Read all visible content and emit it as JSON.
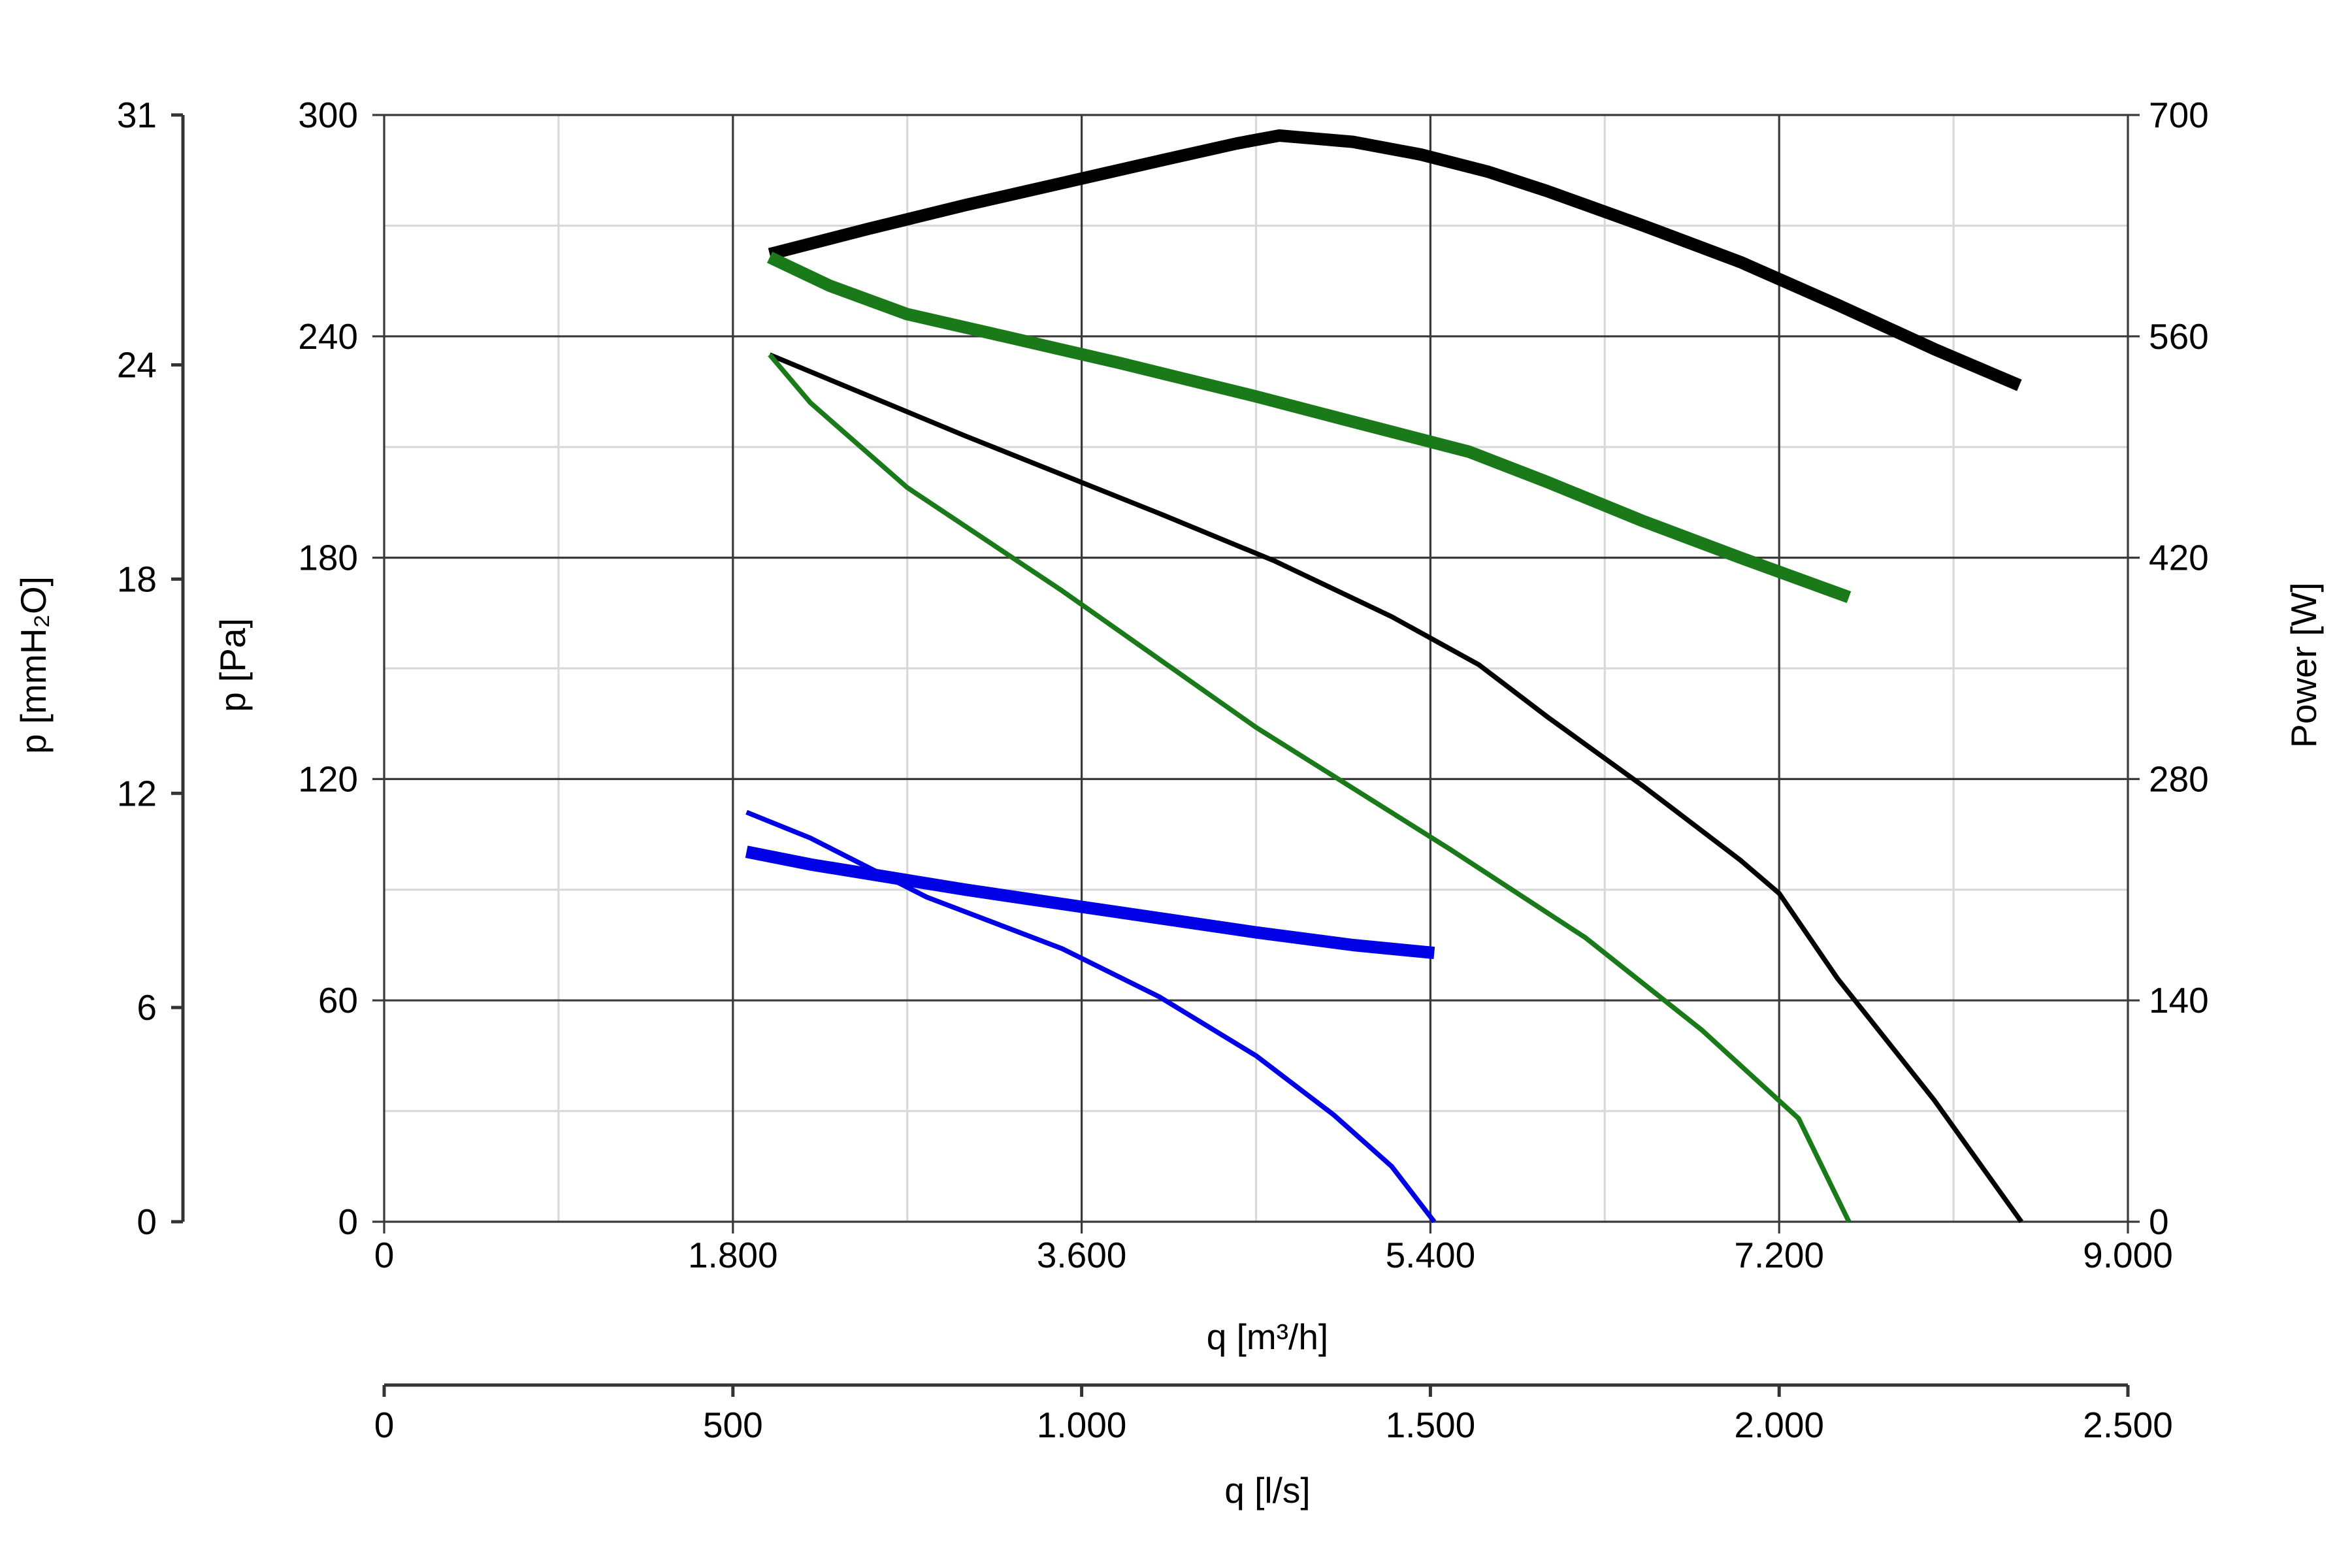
{
  "chart_data": {
    "type": "line",
    "x_primary": {
      "label": "q [m³/h]",
      "range": [
        0,
        9000
      ],
      "ticks": [
        0,
        1800,
        3600,
        5400,
        7200,
        9000
      ],
      "tick_labels": [
        "0",
        "1.800",
        "3.600",
        "5.400",
        "7.200",
        "9.000"
      ],
      "minor_ticks": [
        900,
        2700,
        4500,
        6300,
        8100
      ]
    },
    "x_secondary": {
      "label": "q [l/s]",
      "range": [
        0,
        2500
      ],
      "ticks": [
        0,
        500,
        1000,
        1500,
        2000,
        2500
      ],
      "tick_labels": [
        "0",
        "500",
        "1.000",
        "1.500",
        "2.000",
        "2.500"
      ]
    },
    "y_primary": {
      "label": "p [Pa]",
      "range": [
        0,
        300
      ],
      "ticks": [
        0,
        60,
        120,
        180,
        240,
        300
      ],
      "tick_labels": [
        "0",
        "60",
        "120",
        "180",
        "240",
        "300"
      ],
      "minor_ticks": [
        30,
        90,
        150,
        210,
        270
      ]
    },
    "y_secondary_left": {
      "label": "p [mmH₂O]",
      "range": [
        0,
        31
      ],
      "ticks": [
        0,
        6,
        12,
        18,
        24,
        31
      ],
      "tick_labels": [
        "0",
        "6",
        "12",
        "18",
        "24",
        "31"
      ]
    },
    "y_secondary_right": {
      "label": "Power [W]",
      "range": [
        0,
        700
      ],
      "ticks": [
        0,
        140,
        280,
        420,
        560,
        700
      ],
      "tick_labels": [
        "0",
        "140",
        "280",
        "420",
        "560",
        "700"
      ]
    },
    "grid": true,
    "series": [
      {
        "axis": "pressure",
        "color": "#000000",
        "weight": "thin",
        "points": [
          [
            1990,
            235
          ],
          [
            3000,
            213
          ],
          [
            4000,
            192
          ],
          [
            4600,
            179
          ],
          [
            5200,
            164
          ],
          [
            5650,
            151
          ],
          [
            6000,
            137
          ],
          [
            6500,
            118
          ],
          [
            7000,
            98
          ],
          [
            7200,
            89
          ],
          [
            7500,
            66
          ],
          [
            8000,
            33
          ],
          [
            8450,
            0
          ]
        ]
      },
      {
        "axis": "pressure",
        "color": "#1a7a1a",
        "weight": "thin",
        "points": [
          [
            1990,
            235
          ],
          [
            2200,
            222
          ],
          [
            2700,
            199
          ],
          [
            3500,
            171
          ],
          [
            4500,
            134
          ],
          [
            5500,
            101
          ],
          [
            6200,
            77
          ],
          [
            6800,
            52
          ],
          [
            7300,
            28
          ],
          [
            7560,
            0
          ]
        ]
      },
      {
        "axis": "pressure",
        "color": "#0000e6",
        "weight": "thin",
        "points": [
          [
            1870,
            111
          ],
          [
            2200,
            104
          ],
          [
            2800,
            88
          ],
          [
            3500,
            74
          ],
          [
            4000,
            61
          ],
          [
            4500,
            45
          ],
          [
            4900,
            29
          ],
          [
            5200,
            15
          ],
          [
            5420,
            0
          ]
        ]
      },
      {
        "axis": "power",
        "color": "#000000",
        "weight": "thick",
        "points": [
          [
            1990,
            612
          ],
          [
            2500,
            628
          ],
          [
            3000,
            643
          ],
          [
            3500,
            657
          ],
          [
            4000,
            671
          ],
          [
            4400,
            682
          ],
          [
            4620,
            687
          ],
          [
            5000,
            683
          ],
          [
            5350,
            675
          ],
          [
            5700,
            664
          ],
          [
            6000,
            652
          ],
          [
            6500,
            630
          ],
          [
            7000,
            607
          ],
          [
            7500,
            580
          ],
          [
            8000,
            552
          ],
          [
            8440,
            529
          ]
        ]
      },
      {
        "axis": "power",
        "color": "#1a7a1a",
        "weight": "thick",
        "points": [
          [
            1990,
            610
          ],
          [
            2300,
            592
          ],
          [
            2700,
            574
          ],
          [
            3200,
            560
          ],
          [
            3800,
            543
          ],
          [
            4500,
            522
          ],
          [
            5000,
            506
          ],
          [
            5600,
            487
          ],
          [
            6000,
            468
          ],
          [
            6500,
            443
          ],
          [
            7000,
            420
          ],
          [
            7560,
            395
          ]
        ]
      },
      {
        "axis": "power",
        "color": "#0000e6",
        "weight": "thick",
        "points": [
          [
            1870,
            234
          ],
          [
            2200,
            226
          ],
          [
            2600,
            218
          ],
          [
            3000,
            210
          ],
          [
            3500,
            201
          ],
          [
            4000,
            192
          ],
          [
            4500,
            183
          ],
          [
            5000,
            175
          ],
          [
            5420,
            170
          ]
        ]
      }
    ]
  }
}
